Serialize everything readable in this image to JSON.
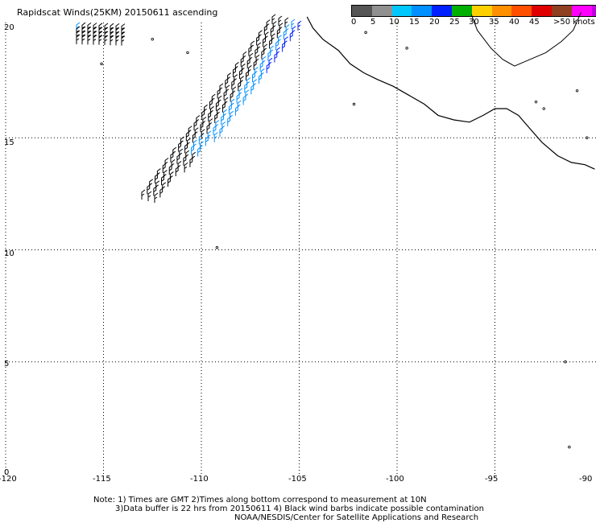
{
  "title": "Rapidscat Winds(25KM) 20150611 ascending",
  "legend": {
    "units_label": ">50 knots",
    "tick_labels": [
      "0",
      "5",
      "10",
      "15",
      "20",
      "25",
      "30",
      "35",
      "40",
      "45"
    ],
    "colors": [
      "#555555",
      "#909090",
      "#00c8ff",
      "#0090ff",
      "#0020ff",
      "#00b000",
      "#ffd000",
      "#ff9000",
      "#ff5000",
      "#e00000",
      "#904020",
      "#ff00ff",
      "#c000e0",
      "#8000c0"
    ]
  },
  "map": {
    "lon_labels": [
      "-120",
      "-115",
      "-110",
      "-105",
      "-100",
      "-95",
      "-90"
    ],
    "lat_labels": [
      "0",
      "5",
      "10",
      "15",
      "20"
    ],
    "lon_range": [
      -120,
      -90
    ],
    "lat_range": [
      0,
      20.5
    ],
    "grid": "dotted"
  },
  "colors": {
    "calm_barb": "#000000",
    "low_wind_barb": "#0090ff",
    "mid_wind_barb": "#0020ff",
    "coastline": "#000000"
  },
  "notes": {
    "line1": "Note: 1) Times are GMT 2)Times along bottom correspond to measurement at 10N",
    "line2": "3)Data buffer is 22 hrs from 20150611 4) Black wind barbs indicate possible contamination",
    "line3": "NOAA/NESDIS/Center for Satellite Applications and Research"
  }
}
